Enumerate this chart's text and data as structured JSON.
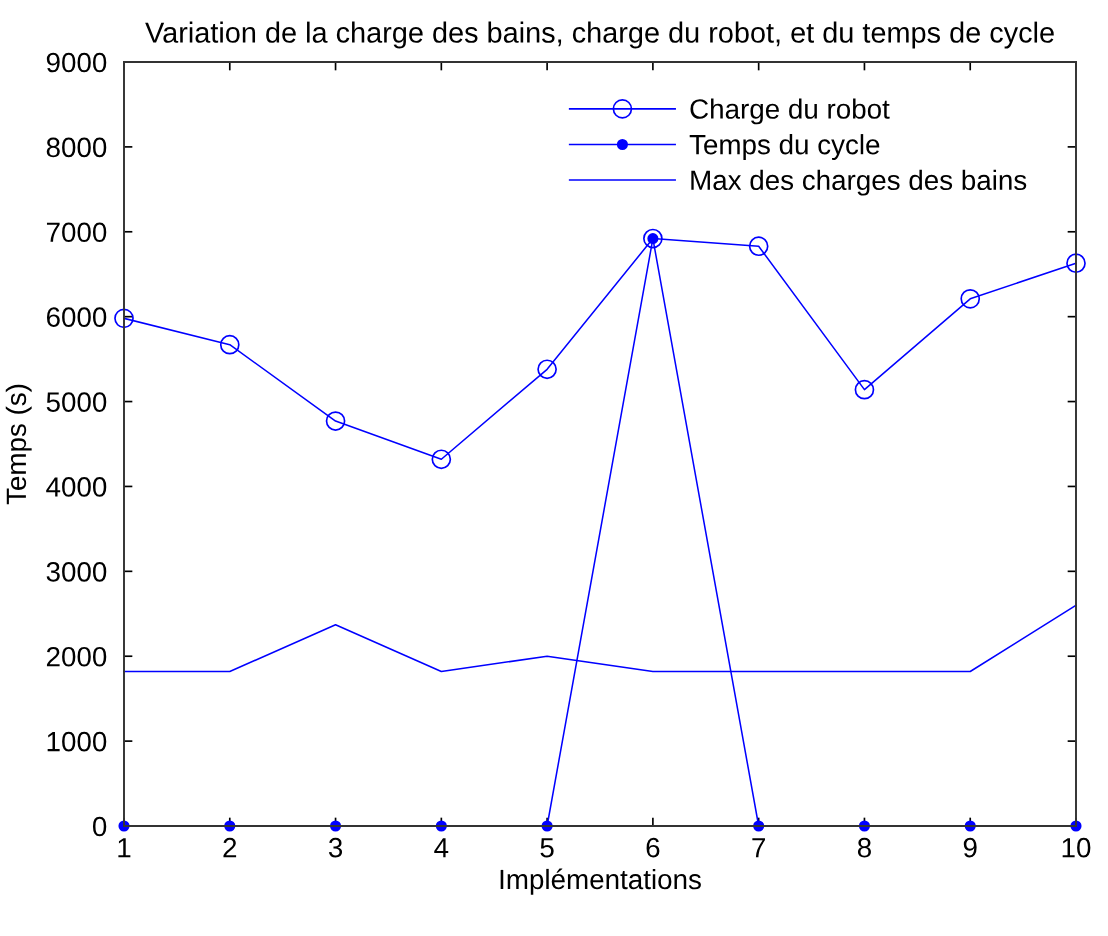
{
  "chart_data": {
    "type": "line",
    "title": "Variation de la charge des bains, charge du robot, et du temps de cycle",
    "xlabel": "Implémentations",
    "ylabel": "Temps (s)",
    "x": [
      1,
      2,
      3,
      4,
      5,
      6,
      7,
      8,
      9,
      10
    ],
    "series": [
      {
        "name": "Charge du robot",
        "color": "#0000ff",
        "marker": "circle",
        "values": [
          5980,
          5670,
          4770,
          4320,
          5380,
          6920,
          6830,
          5140,
          6210,
          6630
        ]
      },
      {
        "name": "Temps du cycle",
        "color": "#0000ff",
        "marker": "circle",
        "values": [
          0,
          0,
          0,
          0,
          0,
          6920,
          0,
          0,
          0,
          0
        ]
      },
      {
        "name": "Max des charges des bains",
        "color": "#0000ff",
        "marker": "none",
        "values": [
          1820,
          1820,
          2370,
          1820,
          2000,
          1820,
          1820,
          1820,
          1820,
          2600
        ]
      }
    ],
    "xlim": [
      1,
      10
    ],
    "xticks": [
      1,
      2,
      3,
      4,
      5,
      6,
      7,
      8,
      9,
      10
    ],
    "ylim": [
      0,
      9000
    ],
    "yticks": [
      0,
      1000,
      2000,
      3000,
      4000,
      5000,
      6000,
      7000,
      8000,
      9000
    ],
    "grid": false,
    "legend": "top right",
    "line_style": "solid"
  }
}
